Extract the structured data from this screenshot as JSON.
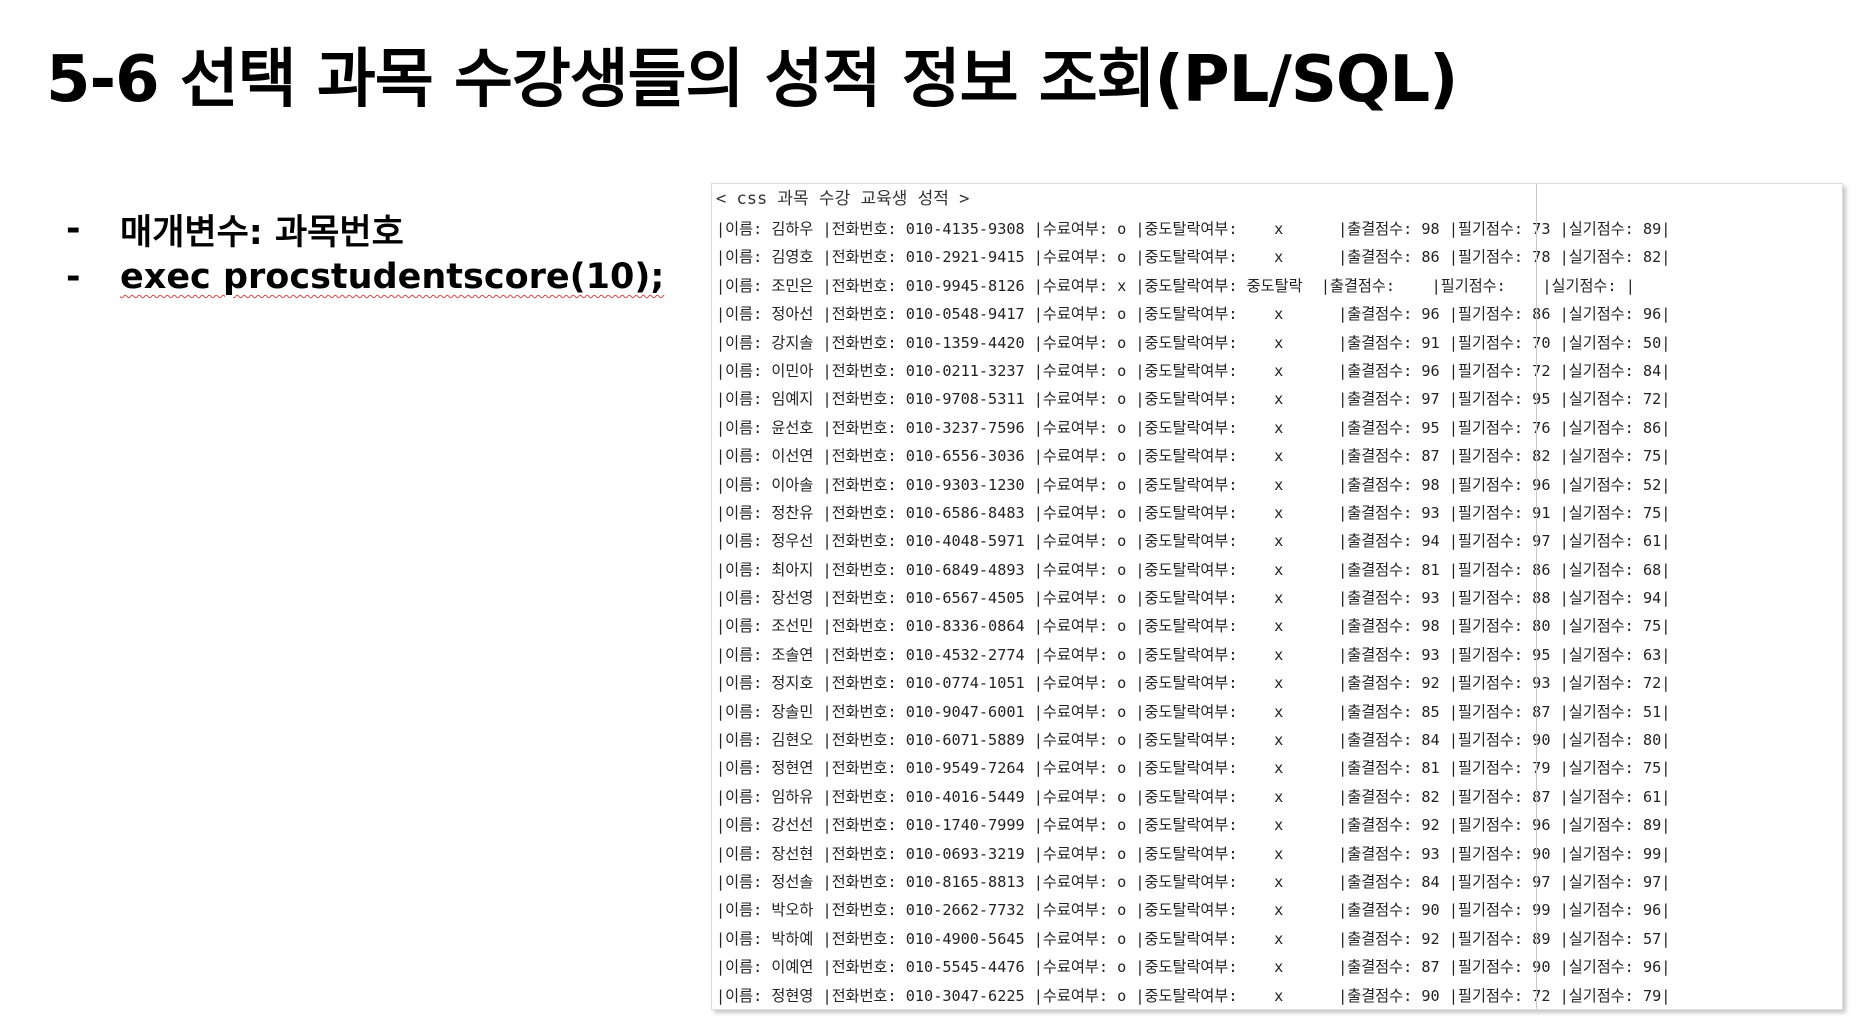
{
  "title": "5-6 선택 과목 수강생들의 성적 정보 조회(PL/SQL)",
  "bullets": [
    {
      "dash": "-",
      "text": "매개변수: 과목번호"
    },
    {
      "dash": "-",
      "text": "exec procstudentscore(10);"
    }
  ],
  "console": {
    "header": "< css 과목 수강 교육생 성적 >",
    "labels": {
      "name": "|이름: ",
      "phone": "|전화번호: ",
      "done": "|수료여부: ",
      "drop": "|중도탈락여부: ",
      "att": "|출결점수: ",
      "written": "|필기점수: ",
      "practical": "|실기점수: "
    },
    "rows": [
      {
        "name": "김하우",
        "phone": "010-4135-9308",
        "done": "o",
        "drop": "x",
        "att": "98",
        "written": "73",
        "practical": "89"
      },
      {
        "name": "김영호",
        "phone": "010-2921-9415",
        "done": "o",
        "drop": "x",
        "att": "86",
        "written": "78",
        "practical": "82"
      },
      {
        "name": "조민은",
        "phone": "010-9945-8126",
        "done": "x",
        "drop": "중도탈락",
        "att": "",
        "written": "",
        "practical": ""
      },
      {
        "name": "정아선",
        "phone": "010-0548-9417",
        "done": "o",
        "drop": "x",
        "att": "96",
        "written": "86",
        "practical": "96"
      },
      {
        "name": "강지솔",
        "phone": "010-1359-4420",
        "done": "o",
        "drop": "x",
        "att": "91",
        "written": "70",
        "practical": "50"
      },
      {
        "name": "이민아",
        "phone": "010-0211-3237",
        "done": "o",
        "drop": "x",
        "att": "96",
        "written": "72",
        "practical": "84"
      },
      {
        "name": "임예지",
        "phone": "010-9708-5311",
        "done": "o",
        "drop": "x",
        "att": "97",
        "written": "95",
        "practical": "72"
      },
      {
        "name": "윤선호",
        "phone": "010-3237-7596",
        "done": "o",
        "drop": "x",
        "att": "95",
        "written": "76",
        "practical": "86"
      },
      {
        "name": "이선연",
        "phone": "010-6556-3036",
        "done": "o",
        "drop": "x",
        "att": "87",
        "written": "82",
        "practical": "75"
      },
      {
        "name": "이아솔",
        "phone": "010-9303-1230",
        "done": "o",
        "drop": "x",
        "att": "98",
        "written": "96",
        "practical": "52"
      },
      {
        "name": "정찬유",
        "phone": "010-6586-8483",
        "done": "o",
        "drop": "x",
        "att": "93",
        "written": "91",
        "practical": "75"
      },
      {
        "name": "정우선",
        "phone": "010-4048-5971",
        "done": "o",
        "drop": "x",
        "att": "94",
        "written": "97",
        "practical": "61"
      },
      {
        "name": "최아지",
        "phone": "010-6849-4893",
        "done": "o",
        "drop": "x",
        "att": "81",
        "written": "86",
        "practical": "68"
      },
      {
        "name": "장선영",
        "phone": "010-6567-4505",
        "done": "o",
        "drop": "x",
        "att": "93",
        "written": "88",
        "practical": "94"
      },
      {
        "name": "조선민",
        "phone": "010-8336-0864",
        "done": "o",
        "drop": "x",
        "att": "98",
        "written": "80",
        "practical": "75"
      },
      {
        "name": "조솔연",
        "phone": "010-4532-2774",
        "done": "o",
        "drop": "x",
        "att": "93",
        "written": "95",
        "practical": "63"
      },
      {
        "name": "정지호",
        "phone": "010-0774-1051",
        "done": "o",
        "drop": "x",
        "att": "92",
        "written": "93",
        "practical": "72"
      },
      {
        "name": "장솔민",
        "phone": "010-9047-6001",
        "done": "o",
        "drop": "x",
        "att": "85",
        "written": "87",
        "practical": "51"
      },
      {
        "name": "김현오",
        "phone": "010-6071-5889",
        "done": "o",
        "drop": "x",
        "att": "84",
        "written": "90",
        "practical": "80"
      },
      {
        "name": "정현연",
        "phone": "010-9549-7264",
        "done": "o",
        "drop": "x",
        "att": "81",
        "written": "79",
        "practical": "75"
      },
      {
        "name": "임하유",
        "phone": "010-4016-5449",
        "done": "o",
        "drop": "x",
        "att": "82",
        "written": "87",
        "practical": "61"
      },
      {
        "name": "강선선",
        "phone": "010-1740-7999",
        "done": "o",
        "drop": "x",
        "att": "92",
        "written": "96",
        "practical": "89"
      },
      {
        "name": "장선현",
        "phone": "010-0693-3219",
        "done": "o",
        "drop": "x",
        "att": "93",
        "written": "90",
        "practical": "99"
      },
      {
        "name": "정선솔",
        "phone": "010-8165-8813",
        "done": "o",
        "drop": "x",
        "att": "84",
        "written": "97",
        "practical": "97"
      },
      {
        "name": "박오하",
        "phone": "010-2662-7732",
        "done": "o",
        "drop": "x",
        "att": "90",
        "written": "99",
        "practical": "96"
      },
      {
        "name": "박하예",
        "phone": "010-4900-5645",
        "done": "o",
        "drop": "x",
        "att": "92",
        "written": "89",
        "practical": "57"
      },
      {
        "name": "이예연",
        "phone": "010-5545-4476",
        "done": "o",
        "drop": "x",
        "att": "87",
        "written": "90",
        "practical": "96"
      },
      {
        "name": "정현영",
        "phone": "010-3047-6225",
        "done": "o",
        "drop": "x",
        "att": "90",
        "written": "72",
        "practical": "79"
      }
    ]
  }
}
